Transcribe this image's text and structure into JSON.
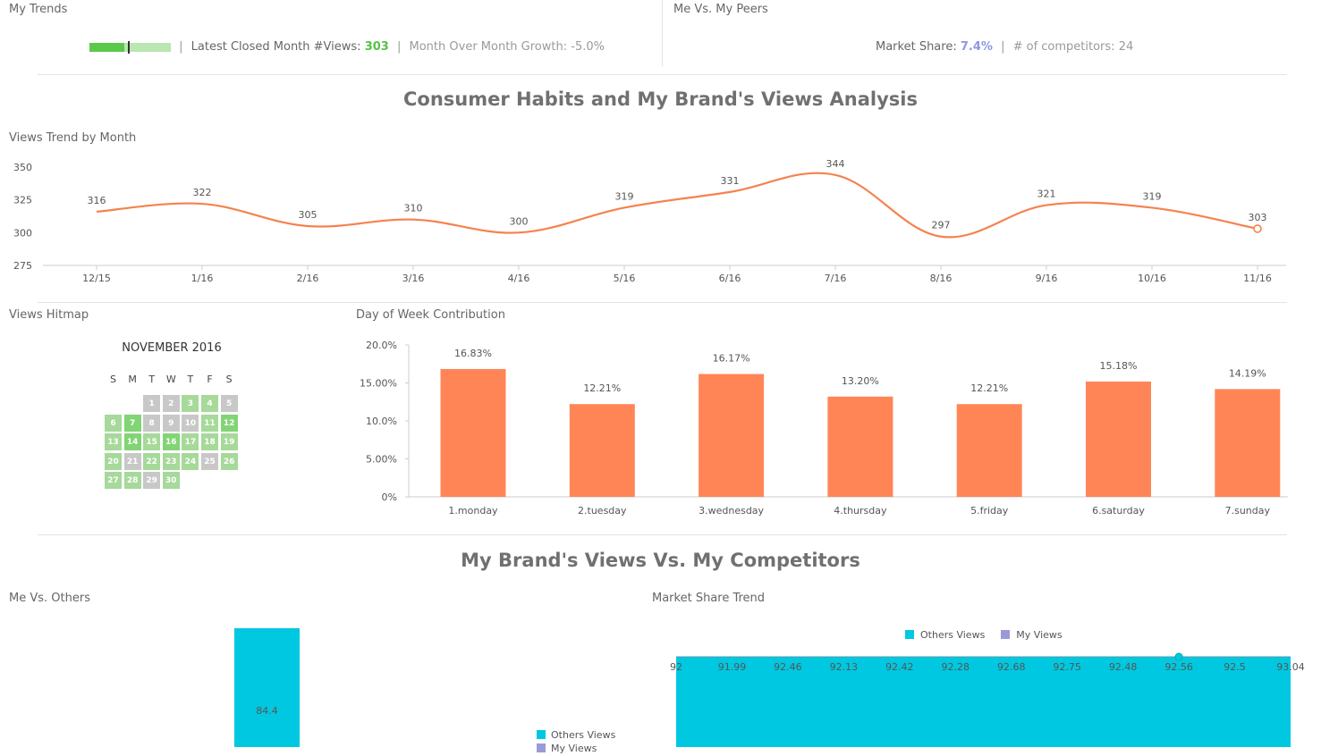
{
  "top": {
    "my_trends_title": "My Trends",
    "peers_title": "Me Vs. My Peers",
    "latest_label": "Latest Closed Month #Views:",
    "latest_value": "303",
    "mom_label": "Month Over Month Growth:",
    "mom_value": "-5.0%",
    "market_share_label": "Market Share:",
    "market_share_value": "7.4%",
    "competitors_label": "# of competitors:",
    "competitors_value": "24",
    "bullet_progress": 0.43
  },
  "section1_title": "Consumer Habits and My Brand's Views Analysis",
  "section2_title": "My Brand's Views Vs. My Competitors",
  "views_trend": {
    "title": "Views Trend by Month",
    "chart_data": {
      "type": "line",
      "x": [
        "12/15",
        "1/16",
        "2/16",
        "3/16",
        "4/16",
        "5/16",
        "6/16",
        "7/16",
        "8/16",
        "9/16",
        "10/16",
        "11/16"
      ],
      "values": [
        316,
        322,
        305,
        310,
        300,
        319,
        331,
        344,
        297,
        321,
        319,
        303
      ],
      "yticks": [
        "350",
        "325",
        "300",
        "275"
      ],
      "ylim": [
        275,
        350
      ],
      "color": "#f5824f"
    }
  },
  "hitmap": {
    "title": "Views Hitmap",
    "month_label": "NOVEMBER 2016",
    "weekdays": [
      "S",
      "M",
      "T",
      "W",
      "T",
      "F",
      "S"
    ],
    "start_offset": 2,
    "days": [
      {
        "d": "1",
        "c": "#c8c8c8"
      },
      {
        "d": "2",
        "c": "#c8c8c8"
      },
      {
        "d": "3",
        "c": "#a6d99a"
      },
      {
        "d": "4",
        "c": "#a6d99a"
      },
      {
        "d": "5",
        "c": "#c8c8c8"
      },
      {
        "d": "6",
        "c": "#a6d99a"
      },
      {
        "d": "7",
        "c": "#82d475"
      },
      {
        "d": "8",
        "c": "#c8c8c8"
      },
      {
        "d": "9",
        "c": "#c8c8c8"
      },
      {
        "d": "10",
        "c": "#c8c8c8"
      },
      {
        "d": "11",
        "c": "#a6d99a"
      },
      {
        "d": "12",
        "c": "#82d475"
      },
      {
        "d": "13",
        "c": "#a6d99a"
      },
      {
        "d": "14",
        "c": "#82d475"
      },
      {
        "d": "15",
        "c": "#a6d99a"
      },
      {
        "d": "16",
        "c": "#82d475"
      },
      {
        "d": "17",
        "c": "#a6d99a"
      },
      {
        "d": "18",
        "c": "#a6d99a"
      },
      {
        "d": "19",
        "c": "#a6d99a"
      },
      {
        "d": "20",
        "c": "#a6d99a"
      },
      {
        "d": "21",
        "c": "#c8c8c8"
      },
      {
        "d": "22",
        "c": "#a6d99a"
      },
      {
        "d": "23",
        "c": "#a6d99a"
      },
      {
        "d": "24",
        "c": "#a6d99a"
      },
      {
        "d": "25",
        "c": "#c8c8c8"
      },
      {
        "d": "26",
        "c": "#a6d99a"
      },
      {
        "d": "27",
        "c": "#a6d99a"
      },
      {
        "d": "28",
        "c": "#a6d99a"
      },
      {
        "d": "29",
        "c": "#c8c8c8"
      },
      {
        "d": "30",
        "c": "#a6d99a"
      }
    ]
  },
  "day_of_week": {
    "title": "Day of Week Contribution",
    "chart_data": {
      "type": "bar",
      "categories": [
        "1.monday",
        "2.tuesday",
        "3.wednesday",
        "4.thursday",
        "5.friday",
        "6.saturday",
        "7.sunday"
      ],
      "values": [
        16.83,
        12.21,
        16.17,
        13.2,
        12.21,
        15.18,
        14.19
      ],
      "labels": [
        "16.83%",
        "12.21%",
        "16.17%",
        "13.20%",
        "12.21%",
        "15.18%",
        "14.19%"
      ],
      "yticks": [
        "20.0%",
        "15.00%",
        "10.0%",
        "5.00%",
        "0%"
      ],
      "ylim": [
        0,
        20
      ],
      "color": "#ff8557"
    }
  },
  "me_vs_others": {
    "title": "Me Vs. Others",
    "chart_data": {
      "type": "bar",
      "values": [
        84.4
      ],
      "labels": [
        "84.4"
      ],
      "color": "#00c8e0"
    },
    "legend": [
      "Others Views",
      "My Views"
    ]
  },
  "market_share_trend": {
    "title": "Market Share Trend",
    "legend": [
      {
        "name": "Others Views",
        "color": "#00c8e0"
      },
      {
        "name": "My Views",
        "color": "#9a9ad8"
      }
    ],
    "chart_data": {
      "type": "area",
      "values": [
        92,
        91.99,
        92.46,
        92.13,
        92.42,
        92.28,
        92.68,
        92.75,
        92.48,
        92.56,
        92.5,
        93.04
      ],
      "labels": [
        "92",
        "91.99",
        "92.46",
        "92.13",
        "92.42",
        "92.28",
        "92.68",
        "92.75",
        "92.48",
        "92.56",
        "92.5",
        "93.04"
      ],
      "color": "#00c8e0"
    }
  }
}
